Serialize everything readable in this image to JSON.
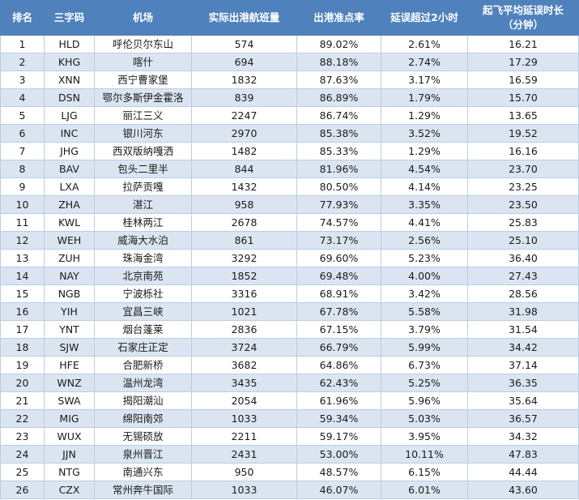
{
  "headers": {
    "rank": "排名",
    "code": "三字码",
    "airport": "机场",
    "flights": "实际出港航班量",
    "ontime": "出港准点率",
    "over2h": "延误超过2小时",
    "avg_delay_line1": "起飞平均延误时长",
    "avg_delay_line2": "（分钟）"
  },
  "rows": [
    {
      "rank": "1",
      "code": "HLD",
      "airport": "呼伦贝尔东山",
      "flights": "574",
      "ontime": "89.02%",
      "over2h": "2.61%",
      "avg_delay": "16.21"
    },
    {
      "rank": "2",
      "code": "KHG",
      "airport": "喀什",
      "flights": "694",
      "ontime": "88.18%",
      "over2h": "2.74%",
      "avg_delay": "17.29"
    },
    {
      "rank": "3",
      "code": "XNN",
      "airport": "西宁曹家堡",
      "flights": "1832",
      "ontime": "87.63%",
      "over2h": "3.17%",
      "avg_delay": "16.59"
    },
    {
      "rank": "4",
      "code": "DSN",
      "airport": "鄂尔多斯伊金霍洛",
      "flights": "839",
      "ontime": "86.89%",
      "over2h": "1.79%",
      "avg_delay": "15.70"
    },
    {
      "rank": "5",
      "code": "LJG",
      "airport": "丽江三义",
      "flights": "2247",
      "ontime": "86.74%",
      "over2h": "1.29%",
      "avg_delay": "13.65"
    },
    {
      "rank": "6",
      "code": "INC",
      "airport": "银川河东",
      "flights": "2970",
      "ontime": "85.38%",
      "over2h": "3.52%",
      "avg_delay": "19.52"
    },
    {
      "rank": "7",
      "code": "JHG",
      "airport": "西双版纳嘎洒",
      "flights": "1482",
      "ontime": "85.33%",
      "over2h": "1.29%",
      "avg_delay": "16.16"
    },
    {
      "rank": "8",
      "code": "BAV",
      "airport": "包头二里半",
      "flights": "844",
      "ontime": "81.96%",
      "over2h": "4.54%",
      "avg_delay": "23.70"
    },
    {
      "rank": "9",
      "code": "LXA",
      "airport": "拉萨贡嘎",
      "flights": "1432",
      "ontime": "80.50%",
      "over2h": "4.14%",
      "avg_delay": "23.25"
    },
    {
      "rank": "10",
      "code": "ZHA",
      "airport": "湛江",
      "flights": "958",
      "ontime": "77.93%",
      "over2h": "3.35%",
      "avg_delay": "23.50"
    },
    {
      "rank": "11",
      "code": "KWL",
      "airport": "桂林两江",
      "flights": "2678",
      "ontime": "74.57%",
      "over2h": "4.41%",
      "avg_delay": "25.83"
    },
    {
      "rank": "12",
      "code": "WEH",
      "airport": "威海大水泊",
      "flights": "861",
      "ontime": "73.17%",
      "over2h": "2.56%",
      "avg_delay": "25.10"
    },
    {
      "rank": "13",
      "code": "ZUH",
      "airport": "珠海金湾",
      "flights": "3292",
      "ontime": "69.60%",
      "over2h": "5.23%",
      "avg_delay": "36.40"
    },
    {
      "rank": "14",
      "code": "NAY",
      "airport": "北京南苑",
      "flights": "1852",
      "ontime": "69.48%",
      "over2h": "4.00%",
      "avg_delay": "27.43"
    },
    {
      "rank": "15",
      "code": "NGB",
      "airport": "宁波栎社",
      "flights": "3316",
      "ontime": "68.91%",
      "over2h": "3.42%",
      "avg_delay": "28.56"
    },
    {
      "rank": "16",
      "code": "YIH",
      "airport": "宜昌三峡",
      "flights": "1021",
      "ontime": "67.78%",
      "over2h": "5.58%",
      "avg_delay": "31.98"
    },
    {
      "rank": "17",
      "code": "YNT",
      "airport": "烟台蓬莱",
      "flights": "2836",
      "ontime": "67.15%",
      "over2h": "3.79%",
      "avg_delay": "31.54"
    },
    {
      "rank": "18",
      "code": "SJW",
      "airport": "石家庄正定",
      "flights": "3724",
      "ontime": "66.79%",
      "over2h": "5.99%",
      "avg_delay": "34.42"
    },
    {
      "rank": "19",
      "code": "HFE",
      "airport": "合肥新桥",
      "flights": "3682",
      "ontime": "64.86%",
      "over2h": "6.73%",
      "avg_delay": "37.14"
    },
    {
      "rank": "20",
      "code": "WNZ",
      "airport": "温州龙湾",
      "flights": "3435",
      "ontime": "62.43%",
      "over2h": "5.25%",
      "avg_delay": "36.35"
    },
    {
      "rank": "21",
      "code": "SWA",
      "airport": "揭阳潮汕",
      "flights": "2054",
      "ontime": "61.96%",
      "over2h": "5.96%",
      "avg_delay": "35.64"
    },
    {
      "rank": "22",
      "code": "MIG",
      "airport": "绵阳南郊",
      "flights": "1033",
      "ontime": "59.34%",
      "over2h": "5.03%",
      "avg_delay": "36.57"
    },
    {
      "rank": "23",
      "code": "WUX",
      "airport": "无锡硕放",
      "flights": "2211",
      "ontime": "59.17%",
      "over2h": "3.95%",
      "avg_delay": "34.32"
    },
    {
      "rank": "24",
      "code": "JJN",
      "airport": "泉州晋江",
      "flights": "2431",
      "ontime": "53.00%",
      "over2h": "10.11%",
      "avg_delay": "47.83"
    },
    {
      "rank": "25",
      "code": "NTG",
      "airport": "南通兴东",
      "flights": "950",
      "ontime": "48.57%",
      "over2h": "6.15%",
      "avg_delay": "44.44"
    },
    {
      "rank": "26",
      "code": "CZX",
      "airport": "常州奔牛国际",
      "flights": "1033",
      "ontime": "46.07%",
      "over2h": "6.01%",
      "avg_delay": "43.60"
    }
  ]
}
